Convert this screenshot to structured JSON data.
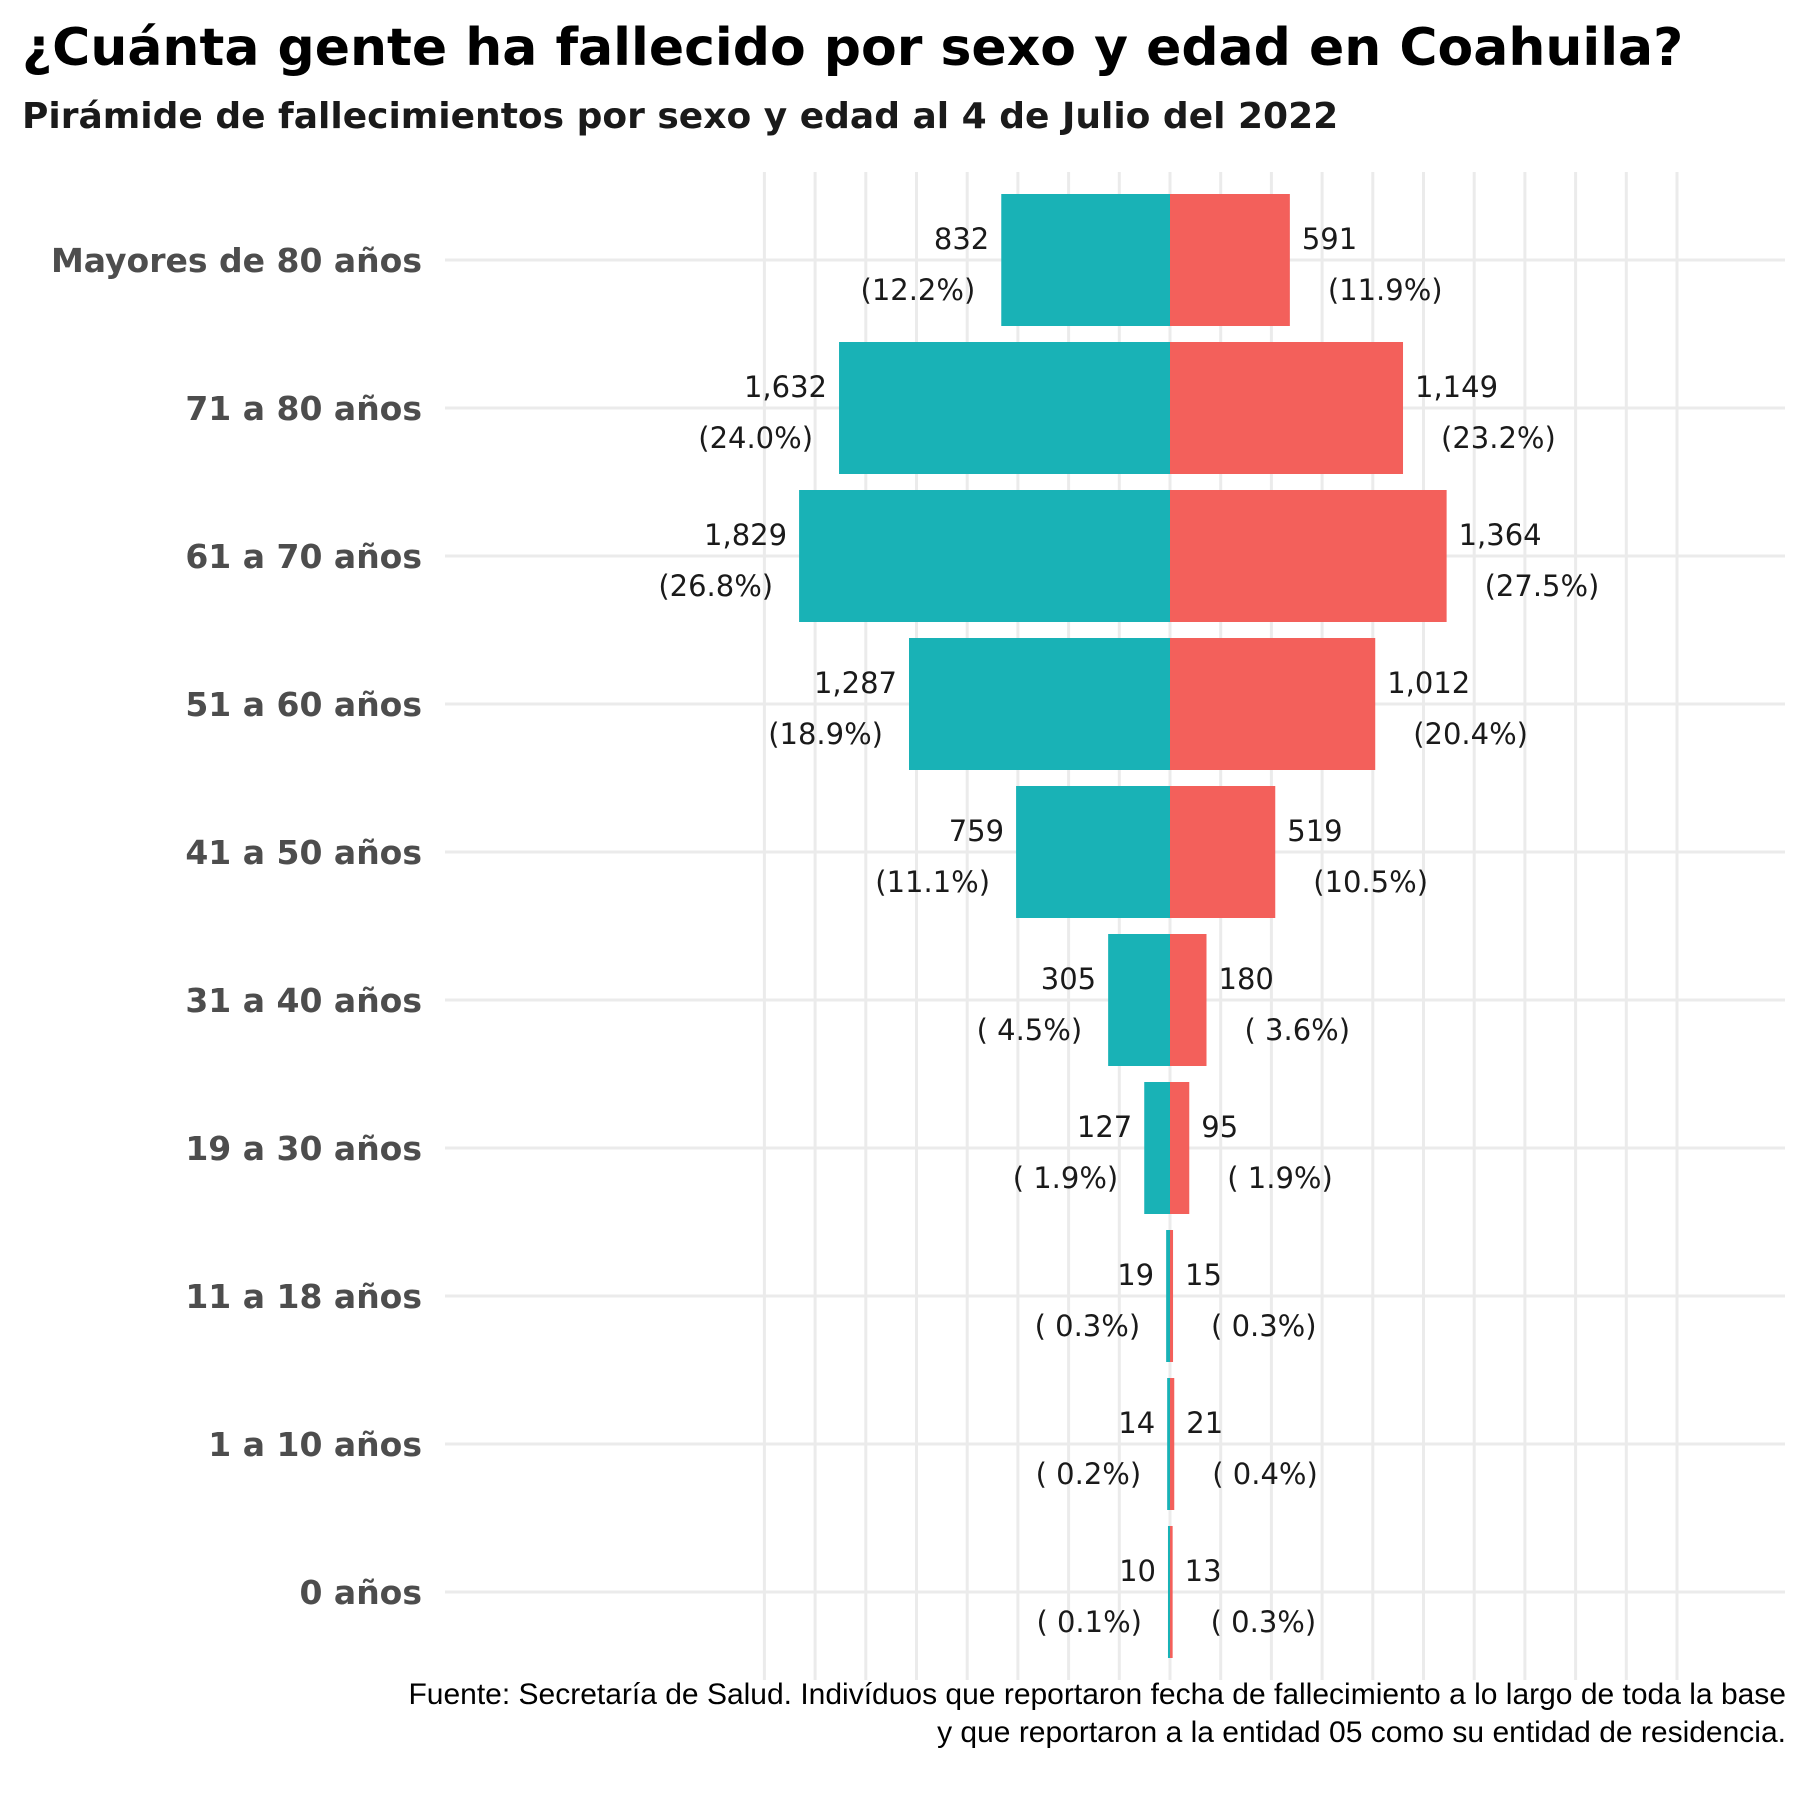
{
  "title": "¿Cuánta gente ha fallecido por sexo y edad en Coahuila?",
  "subtitle": "Pirámide de fallecimientos por sexo y edad al 4 de Julio del 2022",
  "caption": {
    "line1": "Fuente: Secretaría de Salud. Indivíduos que reportaron fecha de fallecimiento a lo largo de toda la base",
    "line2": "y que reportaron a la entidad 05 como su entidad de residencia."
  },
  "colors": {
    "left_bars": "#19B2B6",
    "right_bars": "#F3605B",
    "grid": "#EBEBEB"
  },
  "chart_data": {
    "type": "bar",
    "orientation": "horizontal",
    "layout": "population-pyramid",
    "title": "¿Cuánta gente ha fallecido por sexo y edad en Coahuila?",
    "subtitle": "Pirámide de fallecimientos por sexo y edad al 4 de Julio del 2022",
    "categories": [
      "Mayores de 80 años",
      "71 a 80 años",
      "61 a 70 años",
      "51 a 60 años",
      "41 a 50 años",
      "31 a 40 años",
      "19 a 30 años",
      "11 a 18 años",
      "1 a 10 años",
      "0 años"
    ],
    "series": [
      {
        "side": "left",
        "color": "#19B2B6",
        "values": [
          832,
          1632,
          1829,
          1287,
          759,
          305,
          127,
          19,
          14,
          10
        ],
        "labels": [
          {
            "count": "832",
            "pct": "(12.2%)"
          },
          {
            "count": "1,632",
            "pct": "(24.0%)"
          },
          {
            "count": "1,829",
            "pct": "(26.8%)"
          },
          {
            "count": "1,287",
            "pct": "(18.9%)"
          },
          {
            "count": "759",
            "pct": "(11.1%)"
          },
          {
            "count": "305",
            "pct": "( 4.5%)"
          },
          {
            "count": "127",
            "pct": "( 1.9%)"
          },
          {
            "count": "19",
            "pct": "( 0.3%)"
          },
          {
            "count": "14",
            "pct": "( 0.2%)"
          },
          {
            "count": "10",
            "pct": "( 0.1%)"
          }
        ]
      },
      {
        "side": "right",
        "color": "#F3605B",
        "values": [
          591,
          1149,
          1364,
          1012,
          519,
          180,
          95,
          15,
          21,
          13
        ],
        "labels": [
          {
            "count": "591",
            "pct": "(11.9%)"
          },
          {
            "count": "1,149",
            "pct": "(23.2%)"
          },
          {
            "count": "1,364",
            "pct": "(27.5%)"
          },
          {
            "count": "1,012",
            "pct": "(20.4%)"
          },
          {
            "count": "519",
            "pct": "(10.5%)"
          },
          {
            "count": "180",
            "pct": "( 3.6%)"
          },
          {
            "count": "95",
            "pct": "( 1.9%)"
          },
          {
            "count": "15",
            "pct": "( 0.3%)"
          },
          {
            "count": "21",
            "pct": "( 0.4%)"
          },
          {
            "count": "13",
            "pct": "( 0.3%)"
          }
        ]
      }
    ],
    "xlim": [
      -3000,
      2500
    ],
    "x_axis_labels_shown": false,
    "xlabel": "",
    "ylabel": "",
    "grid": true,
    "legend": "none"
  }
}
